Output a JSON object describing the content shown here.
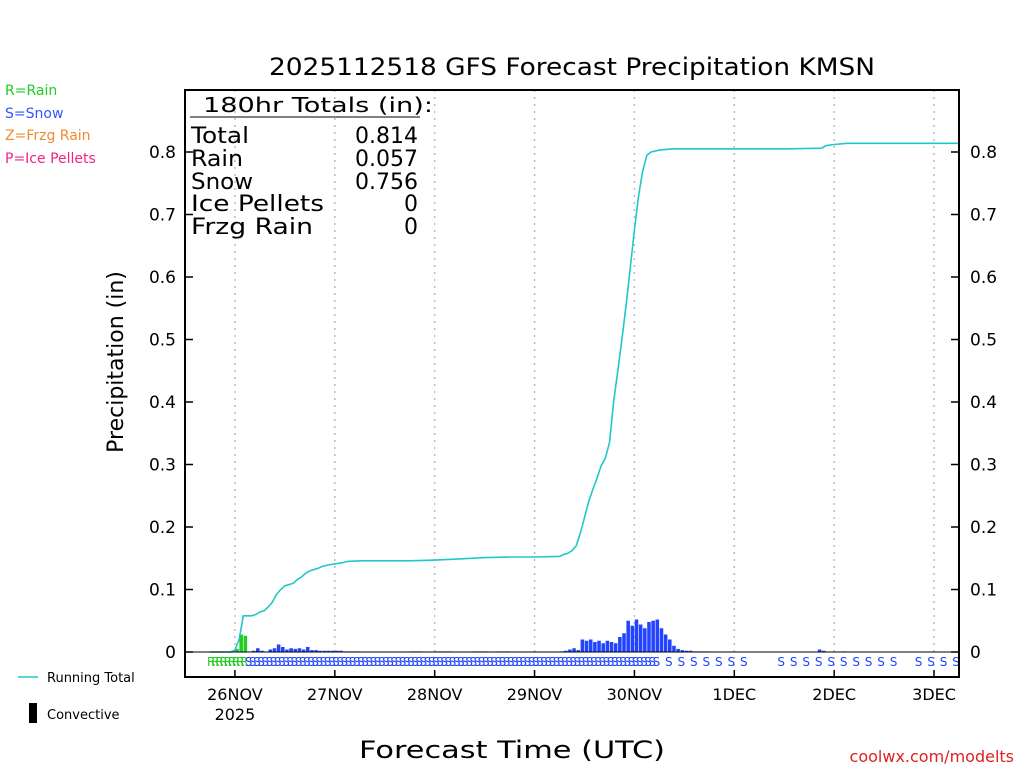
{
  "chart_data": {
    "type": "bar+line",
    "title": "2025112518 GFS Forecast Precipitation KMSN",
    "xlabel": "Forecast Time (UTC)",
    "ylabel": "Precipitation (in)",
    "ylim": [
      0,
      0.9
    ],
    "yticks": [
      0,
      0.1,
      0.2,
      0.3,
      0.4,
      0.5,
      0.6,
      0.7,
      0.8
    ],
    "ytick_labels": [
      "0",
      "0.1",
      "0.2",
      "0.3",
      "0.4",
      "0.5",
      "0.6",
      "0.7",
      "0.8"
    ],
    "xlim_hours": [
      -6,
      180
    ],
    "xticks": [
      {
        "hour": 6,
        "label": "26NOV",
        "sub": "2025"
      },
      {
        "hour": 30,
        "label": "27NOV"
      },
      {
        "hour": 54,
        "label": "28NOV"
      },
      {
        "hour": 78,
        "label": "29NOV"
      },
      {
        "hour": 102,
        "label": "30NOV"
      },
      {
        "hour": 126,
        "label": "1DEC"
      },
      {
        "hour": 150,
        "label": "2DEC"
      },
      {
        "hour": 174,
        "label": "3DEC"
      }
    ],
    "legend_types": [
      {
        "text": "R=Rain",
        "color": "#22cc22"
      },
      {
        "text": "S=Snow",
        "color": "#3355ff"
      },
      {
        "text": "Z=Frzg Rain",
        "color": "#f08a30"
      },
      {
        "text": "P=Ice Pellets",
        "color": "#ee2288"
      }
    ],
    "legend_lines": {
      "running_total": "Running Total",
      "convective": "Convective"
    },
    "totals": {
      "header": "180hr Totals (in):",
      "rows": [
        {
          "label": "Total",
          "value": "0.814"
        },
        {
          "label": "Rain",
          "value": "0.057"
        },
        {
          "label": "Snow",
          "value": "0.756"
        },
        {
          "label": "Ice Pellets",
          "value": "0"
        },
        {
          "label": "Frzg Rain",
          "value": "0"
        }
      ]
    },
    "running_total": [
      [
        0,
        0
      ],
      [
        1,
        0
      ],
      [
        2,
        0
      ],
      [
        3,
        0
      ],
      [
        4,
        0
      ],
      [
        5,
        0
      ],
      [
        6,
        0.003
      ],
      [
        7,
        0.02
      ],
      [
        8,
        0.058
      ],
      [
        10,
        0.058
      ],
      [
        11,
        0.06
      ],
      [
        12,
        0.064
      ],
      [
        13,
        0.066
      ],
      [
        14,
        0.072
      ],
      [
        15,
        0.08
      ],
      [
        16,
        0.092
      ],
      [
        17,
        0.1
      ],
      [
        18,
        0.106
      ],
      [
        20,
        0.11
      ],
      [
        21,
        0.116
      ],
      [
        22,
        0.12
      ],
      [
        23,
        0.126
      ],
      [
        24,
        0.13
      ],
      [
        26,
        0.134
      ],
      [
        27,
        0.137
      ],
      [
        29,
        0.14
      ],
      [
        30,
        0.141
      ],
      [
        32,
        0.143
      ],
      [
        33,
        0.145
      ],
      [
        36,
        0.146
      ],
      [
        48,
        0.146
      ],
      [
        54,
        0.147
      ],
      [
        60,
        0.149
      ],
      [
        66,
        0.151
      ],
      [
        72,
        0.152
      ],
      [
        78,
        0.152
      ],
      [
        84,
        0.153
      ],
      [
        85,
        0.156
      ],
      [
        86,
        0.158
      ],
      [
        87,
        0.162
      ],
      [
        88,
        0.17
      ],
      [
        89,
        0.19
      ],
      [
        90,
        0.215
      ],
      [
        91,
        0.24
      ],
      [
        92,
        0.26
      ],
      [
        93,
        0.278
      ],
      [
        94,
        0.298
      ],
      [
        95,
        0.31
      ],
      [
        96,
        0.335
      ],
      [
        97,
        0.4
      ],
      [
        98,
        0.45
      ],
      [
        99,
        0.5
      ],
      [
        100,
        0.555
      ],
      [
        101,
        0.615
      ],
      [
        102,
        0.675
      ],
      [
        103,
        0.73
      ],
      [
        104,
        0.77
      ],
      [
        105,
        0.795
      ],
      [
        106,
        0.8
      ],
      [
        108,
        0.803
      ],
      [
        111,
        0.805
      ],
      [
        120,
        0.805
      ],
      [
        138,
        0.805
      ],
      [
        147,
        0.806
      ],
      [
        148,
        0.81
      ],
      [
        150,
        0.812
      ],
      [
        153,
        0.814
      ],
      [
        180,
        0.814
      ]
    ],
    "bars_hourly": {
      "start_hour": 1,
      "snow": [
        0,
        0,
        0,
        0,
        0,
        0,
        0,
        0,
        0,
        0,
        0.002,
        0.006,
        0.002,
        0,
        0.004,
        0.006,
        0.012,
        0.008,
        0.004,
        0.006,
        0.005,
        0.006,
        0.004,
        0.008,
        0.003,
        0.003,
        0.002,
        0.002,
        0.002,
        0.002,
        0.002,
        0.002,
        0.001,
        0.001,
        0.001,
        0.001,
        0,
        0,
        0,
        0,
        0,
        0,
        0,
        0,
        0,
        0,
        0,
        0,
        0.001,
        0.001,
        0.001,
        0,
        0,
        0,
        0.001,
        0.001,
        0.001,
        0.001,
        0,
        0,
        0,
        0,
        0,
        0.001,
        0.001,
        0.001,
        0.001,
        0,
        0,
        0.001,
        0.001,
        0.001,
        0,
        0,
        0,
        0,
        0,
        0,
        0,
        0,
        0,
        0,
        0,
        0,
        0.001,
        0.002,
        0.004,
        0.006,
        0.003,
        0.02,
        0.018,
        0.02,
        0.016,
        0.018,
        0.014,
        0.018,
        0.016,
        0.014,
        0.024,
        0.03,
        0.05,
        0.042,
        0.052,
        0.044,
        0.038,
        0.048,
        0.05,
        0.052,
        0.038,
        0.028,
        0.02,
        0.01,
        0.005,
        0.003,
        0.002,
        0.002,
        0.001,
        0.001,
        0.001,
        0.001,
        0,
        0,
        0,
        0,
        0,
        0,
        0,
        0,
        0,
        0,
        0,
        0,
        0,
        0,
        0,
        0,
        0,
        0,
        0,
        0,
        0,
        0,
        0,
        0,
        0,
        0,
        0.004,
        0.002,
        0,
        0,
        0,
        0,
        0.001,
        0,
        0,
        0,
        0,
        0,
        0,
        0,
        0,
        0,
        0,
        0,
        0,
        0,
        0,
        0,
        0,
        0,
        0,
        0,
        0,
        0,
        0,
        0,
        0,
        0,
        0,
        0
      ],
      "rain": [
        0,
        0,
        0,
        0,
        0,
        0.002,
        0.005,
        0.028,
        0.026,
        0,
        0,
        0,
        0,
        0,
        0,
        0,
        0,
        0,
        0,
        0
      ]
    },
    "ptype_row": {
      "rain_hours": [
        1,
        2,
        3,
        4,
        5,
        6,
        7,
        8,
        9
      ],
      "snow_dense_range": [
        10,
        108
      ],
      "snow_extra_hours": [
        111,
        114,
        117,
        120,
        123,
        126,
        129,
        138,
        141,
        144,
        147,
        150,
        153,
        156,
        159,
        162,
        165,
        171,
        174,
        177,
        180
      ]
    },
    "credit": "coolwx.com/modelts",
    "colors": {
      "line": "#20c8c8",
      "snow": "#2244ff",
      "rain": "#22cc22",
      "frame": "#000000",
      "grid": "#bbbbbb",
      "credit": "#dd2222"
    }
  }
}
